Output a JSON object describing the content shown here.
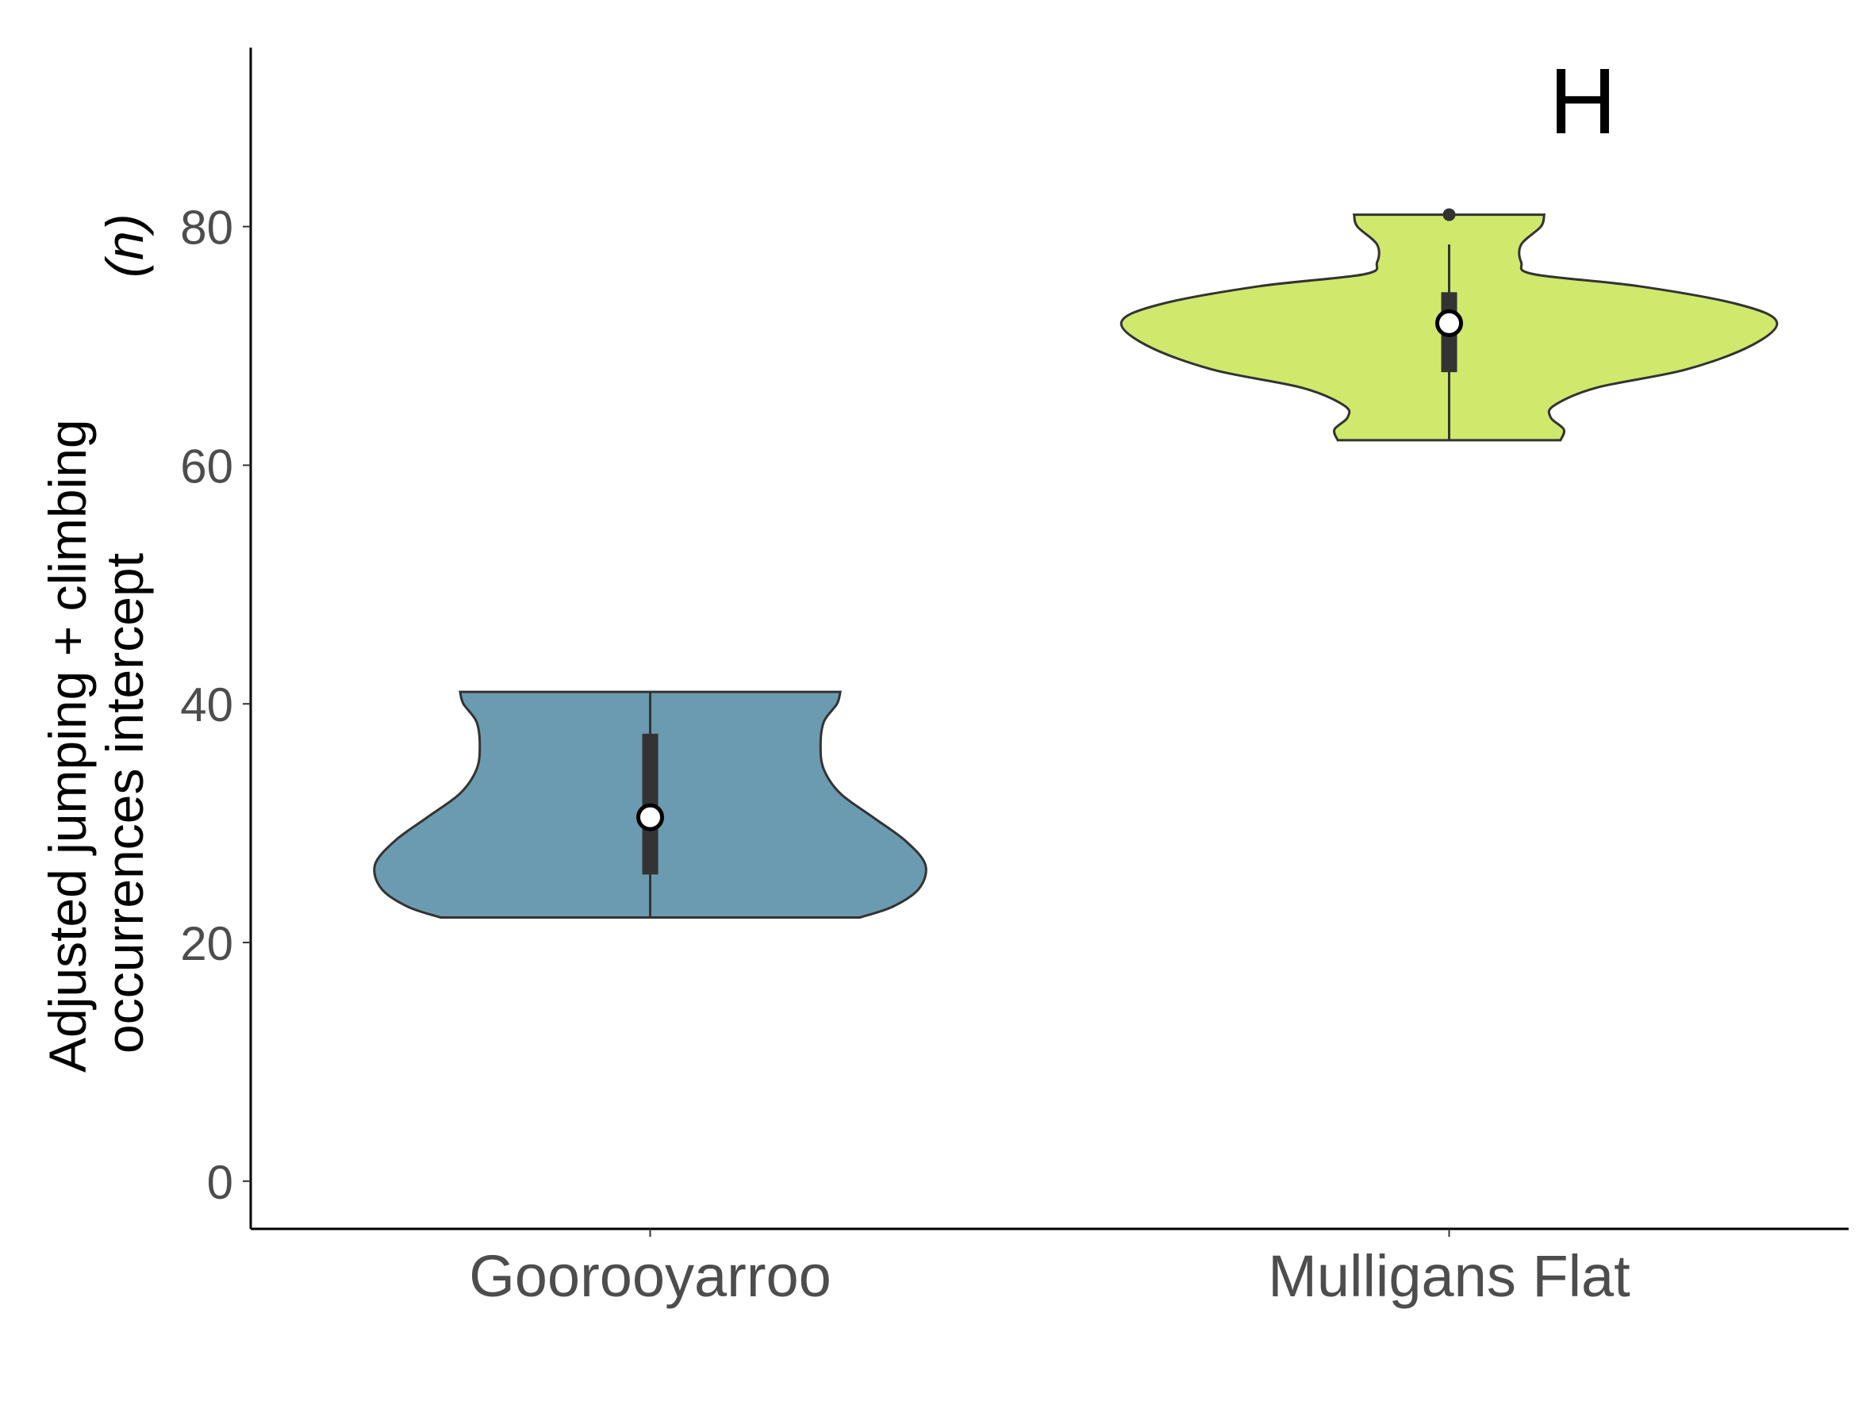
{
  "chart_data": {
    "type": "violin",
    "panel_label": "H",
    "ylabel_line1": "Adjusted jumping + climbing",
    "ylabel_line2": "occurrences intercept",
    "ylabel_unit": "(n)",
    "ylim": [
      -4,
      95
    ],
    "yticks": [
      0,
      20,
      40,
      60,
      80
    ],
    "ytick_labels": [
      "0",
      "20",
      "40",
      "60",
      "80"
    ],
    "categories": [
      "Goorooyarroo",
      "Mulligans Flat"
    ],
    "colors": {
      "Goorooyarroo": "#6b9bb0",
      "Mulligans Flat": "#d0e86c",
      "outline": "#333333",
      "axis": "#000000"
    },
    "groups": [
      {
        "name": "Goorooyarroo",
        "min": 22.1,
        "max": 41.0,
        "q1": 25.7,
        "median": 30.5,
        "q3": 37.5,
        "whisker_low": 22.1,
        "whisker_high": 41.0,
        "outliers": [],
        "density": [
          [
            22.1,
            0.64
          ],
          [
            23.0,
            0.74
          ],
          [
            24.5,
            0.82
          ],
          [
            26.5,
            0.84
          ],
          [
            28.5,
            0.78
          ],
          [
            30.5,
            0.68
          ],
          [
            32.5,
            0.58
          ],
          [
            34.5,
            0.53
          ],
          [
            36.5,
            0.52
          ],
          [
            38.5,
            0.53
          ],
          [
            40.0,
            0.57
          ],
          [
            41.0,
            0.58
          ]
        ]
      },
      {
        "name": "Mulligans Flat",
        "min": 62.1,
        "max": 81.0,
        "q1": 67.8,
        "median": 71.9,
        "q3": 74.5,
        "whisker_low": 62.1,
        "whisker_high": 78.5,
        "outliers": [
          81.0
        ],
        "density": [
          [
            62.1,
            0.34
          ],
          [
            63.0,
            0.35
          ],
          [
            64.0,
            0.31
          ],
          [
            65.0,
            0.32
          ],
          [
            66.5,
            0.45
          ],
          [
            68.0,
            0.72
          ],
          [
            70.0,
            0.92
          ],
          [
            72.0,
            1.0
          ],
          [
            73.5,
            0.88
          ],
          [
            75.0,
            0.58
          ],
          [
            76.0,
            0.26
          ],
          [
            77.0,
            0.22
          ],
          [
            78.5,
            0.22
          ],
          [
            80.0,
            0.28
          ],
          [
            81.0,
            0.29
          ]
        ]
      }
    ]
  }
}
